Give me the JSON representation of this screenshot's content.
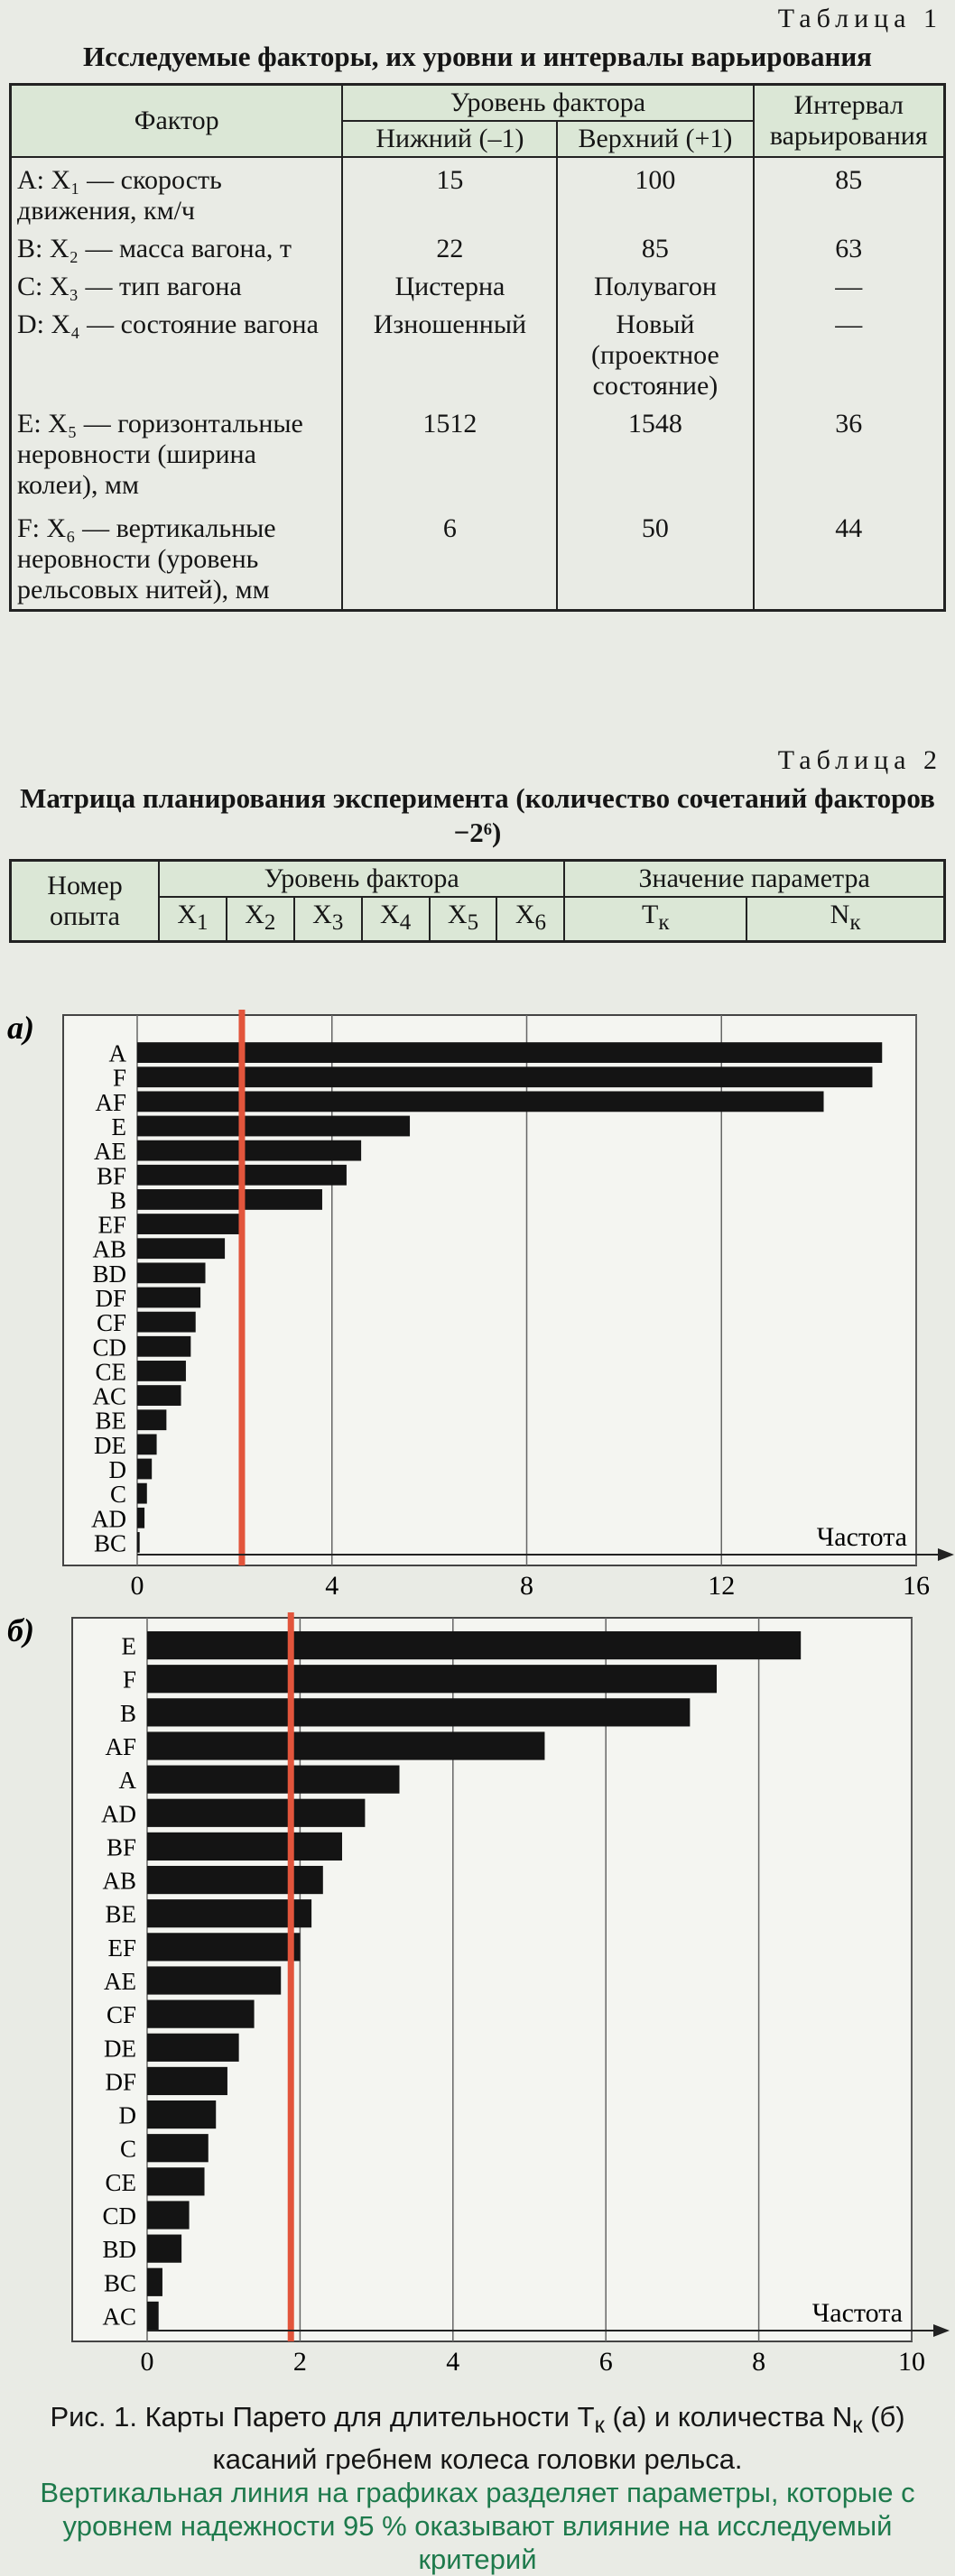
{
  "table1": {
    "label": "Таблица 1",
    "title": "Исследуемые факторы, их уровни и интервалы варьирования",
    "headers": {
      "factor": "Фактор",
      "level": "Уровень фактора",
      "low": "Нижний (–1)",
      "high": "Верхний (+1)",
      "interval": "Интервал варьирования"
    },
    "rows": [
      [
        "A: X₁ — скорость движения, км/ч",
        15,
        100,
        85
      ],
      [
        "B: X₂ — масса вагона, т",
        22,
        85,
        63
      ],
      [
        "C: X₃ — тип вагона",
        "Цистерна",
        "Полувагон",
        "—"
      ],
      [
        "D: X₄ — состояние вагона",
        "Изношенный",
        "Новый (проектное состояние)",
        "—"
      ],
      [
        "E: X₅ — горизонтальные неровности (ширина колеи), мм",
        1512,
        1548,
        36
      ],
      [
        "F: X₆ — вертикальные неровности (уровень рельсовых нитей), мм",
        6,
        50,
        44
      ]
    ]
  },
  "table2": {
    "label": "Таблица 2",
    "title": "Матрица планирования эксперимента (количество сочетаний факторов −2⁶)",
    "headers": {
      "number": "Номер опыта",
      "level": "Уровень фактора",
      "param": "Значение параметра",
      "factors": [
        [
          "X",
          "1"
        ],
        [
          "X",
          "2"
        ],
        [
          "X",
          "3"
        ],
        [
          "X",
          "4"
        ],
        [
          "X",
          "5"
        ],
        [
          "X",
          "6"
        ]
      ],
      "params": [
        [
          "T",
          "к"
        ],
        [
          "N",
          "к"
        ]
      ]
    }
  },
  "chart_data": [
    {
      "type": "bar",
      "panel": "а)",
      "x_label": "Частота",
      "color": "#141414",
      "threshold": 2.15,
      "threshold_color": "#e2553c",
      "grid": true,
      "categories": [
        "A",
        "F",
        "AF",
        "E",
        "AE",
        "BF",
        "B",
        "EF",
        "AB",
        "BD",
        "DF",
        "CF",
        "CD",
        "CE",
        "AC",
        "BE",
        "DE",
        "D",
        "C",
        "AD",
        "BC"
      ],
      "values": [
        15.3,
        15.1,
        14.1,
        5.6,
        4.6,
        4.3,
        3.8,
        2.1,
        1.8,
        1.4,
        1.3,
        1.2,
        1.1,
        1.0,
        0.9,
        0.6,
        0.4,
        0.3,
        0.2,
        0.15,
        0.05
      ],
      "xlim": [
        0,
        16
      ],
      "xticks": [
        0,
        4,
        8,
        12,
        16
      ]
    },
    {
      "type": "bar",
      "panel": "б)",
      "x_label": "Частота",
      "color": "#141414",
      "threshold": 1.88,
      "threshold_color": "#e2553c",
      "grid": true,
      "categories": [
        "E",
        "F",
        "B",
        "AF",
        "A",
        "AD",
        "BF",
        "AB",
        "BE",
        "EF",
        "AE",
        "CF",
        "DE",
        "DF",
        "D",
        "C",
        "CE",
        "CD",
        "BD",
        "BC",
        "AC"
      ],
      "values": [
        8.55,
        7.45,
        7.1,
        5.2,
        3.3,
        2.85,
        2.55,
        2.3,
        2.15,
        2.0,
        1.75,
        1.4,
        1.2,
        1.05,
        0.9,
        0.8,
        0.75,
        0.55,
        0.45,
        0.2,
        0.15
      ],
      "xlim": [
        0,
        10
      ],
      "xticks": [
        0,
        2,
        4,
        6,
        8,
        10
      ]
    }
  ],
  "caption": {
    "main": [
      "Рис. 1. Карты Парето для длительности T",
      "к",
      " (а) и количества N",
      "к",
      " (б) касаний гребнем колеса головки рельса."
    ],
    "note": "Вертикальная линия на графиках разделяет параметры, которые с уровнем надежности 95 % оказывают влияние на исследуемый критерий"
  }
}
